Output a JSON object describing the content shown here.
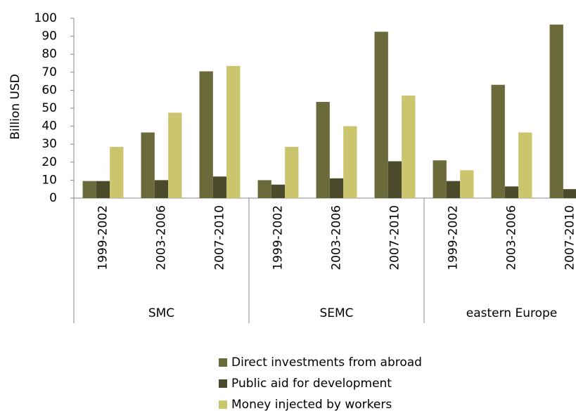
{
  "chart_data": {
    "type": "bar",
    "y_axis_label": "Billion USD",
    "category_groups": [
      {
        "name": "SMC",
        "categories": [
          "1999-2002",
          "2003-2006",
          "2007-2010"
        ]
      },
      {
        "name": "SEMC",
        "categories": [
          "1999-2002",
          "2003-2006",
          "2007-2010"
        ]
      },
      {
        "name": "eastern Europe",
        "categories": [
          "1999-2002",
          "2003-2006",
          "2007-2010"
        ]
      }
    ],
    "series": [
      {
        "name": "Direct investments from abroad",
        "color": "#6b6a3b",
        "values": [
          9.5,
          36.5,
          70.5,
          10,
          53.5,
          92.5,
          21,
          63,
          96.5
        ]
      },
      {
        "name": "Public aid for development",
        "color": "#4b4a2b",
        "values": [
          9.5,
          10,
          12,
          7.5,
          11,
          20.5,
          9.5,
          6.5,
          5
        ]
      },
      {
        "name": "Money injected by workers",
        "color": "#cbc66d",
        "values": [
          28.5,
          47.5,
          73.5,
          28.5,
          40,
          57,
          15.5,
          36.5,
          null
        ]
      }
    ],
    "ylim": [
      0,
      100
    ],
    "yticks": [
      0,
      10,
      20,
      30,
      40,
      50,
      60,
      70,
      80,
      90,
      100
    ],
    "grid": false
  }
}
